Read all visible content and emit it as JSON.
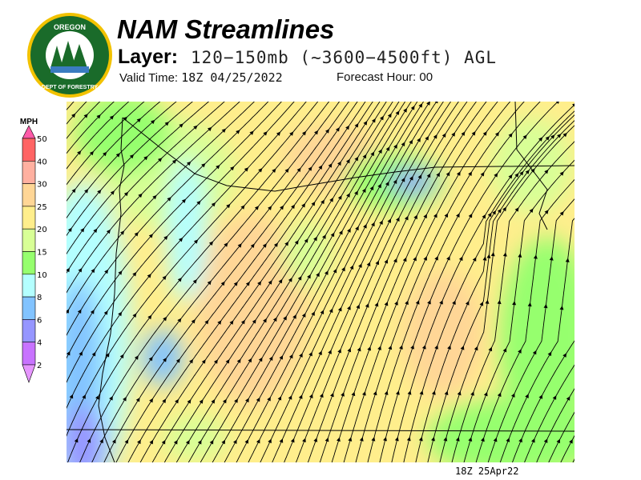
{
  "logo": {
    "text": "OREGON DEPARTMENT OF FORESTRY",
    "colors": {
      "ring": "#1a6b2a",
      "gold": "#f2c200"
    }
  },
  "header": {
    "title": "NAM Streamlines",
    "layer_label": "Layer:",
    "layer_value": "120−150mb (~3600−4500ft) AGL",
    "valid_label": "Valid Time:",
    "valid_value": "18Z 04/25/2022",
    "forecast_label": "Forecast Hour:",
    "forecast_value": "00"
  },
  "legend": {
    "unit": "MPH",
    "bins": [
      {
        "label": "50",
        "color": "#ff5aa8"
      },
      {
        "label": "40",
        "color": "#ff6464"
      },
      {
        "label": "30",
        "color": "#ffb0a0"
      },
      {
        "label": "25",
        "color": "#ffd696"
      },
      {
        "label": "20",
        "color": "#ffee8c"
      },
      {
        "label": "15",
        "color": "#d8ff96"
      },
      {
        "label": "10",
        "color": "#96ff6e"
      },
      {
        "label": "8",
        "color": "#b4ffff"
      },
      {
        "label": "6",
        "color": "#82c3ff"
      },
      {
        "label": "4",
        "color": "#9696ff"
      },
      {
        "label": "2",
        "color": "#c873ff"
      },
      {
        "label": "",
        "color": "#e696ff"
      }
    ]
  },
  "map": {
    "timestamp": "18Z 25Apr22"
  }
}
